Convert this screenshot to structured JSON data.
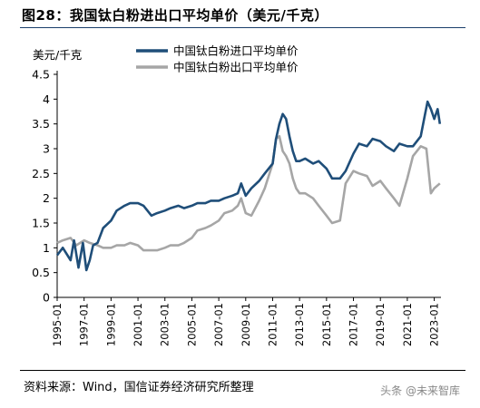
{
  "figure": {
    "title": "图28：我国钛白粉进出口平均单价（美元/千克）",
    "source": "资料来源：Wind，国信证券经济研究所整理",
    "watermark": "头条 @未来智库"
  },
  "colors": {
    "import": "#1f4e79",
    "export": "#a6a6a6",
    "axis": "#000000"
  },
  "chart_data": {
    "type": "line",
    "ylabel": "美元/千克",
    "ylim": [
      0,
      4.5
    ],
    "yticks": [
      "0",
      "0.5",
      "1",
      "1.5",
      "2",
      "2.5",
      "3",
      "3.5",
      "4",
      "4.5"
    ],
    "xlim": [
      "1995-01",
      "2023-07"
    ],
    "xticks": [
      "1995-01",
      "1997-01",
      "1999-01",
      "2001-01",
      "2003-01",
      "2005-01",
      "2007-01",
      "2009-01",
      "2011-01",
      "2013-01",
      "2015-01",
      "2017-01",
      "2019-01",
      "2021-01",
      "2023-01"
    ],
    "grid": false,
    "legend": "top-center",
    "series": [
      {
        "name": "中国钛白粉进口平均单价",
        "color": "#1f4e79",
        "x": [
          "1995-01",
          "1995-06",
          "1996-01",
          "1996-04",
          "1996-08",
          "1996-12",
          "1997-03",
          "1997-06",
          "1997-09",
          "1998-01",
          "1998-06",
          "1999-01",
          "1999-06",
          "2000-01",
          "2000-06",
          "2001-01",
          "2001-06",
          "2002-01",
          "2002-06",
          "2003-01",
          "2003-06",
          "2004-01",
          "2004-06",
          "2005-01",
          "2005-06",
          "2006-01",
          "2006-06",
          "2007-01",
          "2007-06",
          "2008-01",
          "2008-06",
          "2008-09",
          "2009-01",
          "2009-06",
          "2010-01",
          "2010-06",
          "2011-01",
          "2011-04",
          "2011-07",
          "2011-10",
          "2012-01",
          "2012-04",
          "2012-07",
          "2012-10",
          "2013-01",
          "2013-06",
          "2014-01",
          "2014-06",
          "2015-01",
          "2015-06",
          "2016-01",
          "2016-06",
          "2017-01",
          "2017-06",
          "2018-01",
          "2018-06",
          "2019-01",
          "2019-06",
          "2020-01",
          "2020-06",
          "2021-01",
          "2021-06",
          "2022-01",
          "2022-04",
          "2022-07",
          "2022-10",
          "2023-01",
          "2023-04",
          "2023-06"
        ],
        "values": [
          0.85,
          1.0,
          0.75,
          1.15,
          0.6,
          1.1,
          0.55,
          0.75,
          1.05,
          1.1,
          1.4,
          1.55,
          1.75,
          1.85,
          1.9,
          1.9,
          1.85,
          1.65,
          1.7,
          1.75,
          1.8,
          1.85,
          1.8,
          1.85,
          1.9,
          1.9,
          1.95,
          1.95,
          2.0,
          2.05,
          2.1,
          2.3,
          2.05,
          2.2,
          2.35,
          2.5,
          2.7,
          3.2,
          3.5,
          3.7,
          3.6,
          3.25,
          2.95,
          2.75,
          2.75,
          2.8,
          2.7,
          2.75,
          2.6,
          2.4,
          2.4,
          2.55,
          2.9,
          3.1,
          3.05,
          3.2,
          3.15,
          3.05,
          2.95,
          3.1,
          3.05,
          3.05,
          3.25,
          3.6,
          3.95,
          3.8,
          3.6,
          3.8,
          3.5
        ]
      },
      {
        "name": "中国钛白粉出口平均单价",
        "color": "#a6a6a6",
        "x": [
          "1995-01",
          "1995-06",
          "1996-01",
          "1996-06",
          "1997-01",
          "1997-06",
          "1998-01",
          "1998-06",
          "1999-01",
          "1999-06",
          "2000-01",
          "2000-06",
          "2001-01",
          "2001-06",
          "2002-01",
          "2002-06",
          "2003-01",
          "2003-06",
          "2004-01",
          "2004-06",
          "2005-01",
          "2005-06",
          "2006-01",
          "2006-06",
          "2007-01",
          "2007-06",
          "2008-01",
          "2008-06",
          "2008-09",
          "2009-01",
          "2009-06",
          "2010-01",
          "2010-06",
          "2011-01",
          "2011-04",
          "2011-07",
          "2011-10",
          "2012-01",
          "2012-04",
          "2012-07",
          "2012-10",
          "2013-01",
          "2013-06",
          "2014-01",
          "2014-06",
          "2015-01",
          "2015-06",
          "2016-01",
          "2016-06",
          "2017-01",
          "2017-06",
          "2018-01",
          "2018-06",
          "2019-01",
          "2019-06",
          "2020-01",
          "2020-06",
          "2021-01",
          "2021-06",
          "2022-01",
          "2022-06",
          "2022-10",
          "2023-01",
          "2023-06"
        ],
        "values": [
          1.1,
          1.15,
          1.2,
          1.05,
          1.15,
          1.1,
          1.05,
          1.0,
          1.0,
          1.05,
          1.05,
          1.1,
          1.05,
          0.95,
          0.95,
          0.95,
          1.0,
          1.05,
          1.05,
          1.1,
          1.2,
          1.35,
          1.4,
          1.45,
          1.55,
          1.7,
          1.75,
          1.85,
          2.0,
          1.7,
          1.65,
          1.95,
          2.2,
          2.7,
          3.2,
          3.25,
          2.95,
          2.85,
          2.7,
          2.4,
          2.2,
          2.1,
          2.1,
          2.0,
          1.85,
          1.65,
          1.5,
          1.55,
          2.3,
          2.55,
          2.5,
          2.45,
          2.25,
          2.35,
          2.2,
          2.0,
          1.85,
          2.4,
          2.85,
          3.05,
          3.0,
          2.1,
          2.2,
          2.3
        ]
      }
    ]
  }
}
